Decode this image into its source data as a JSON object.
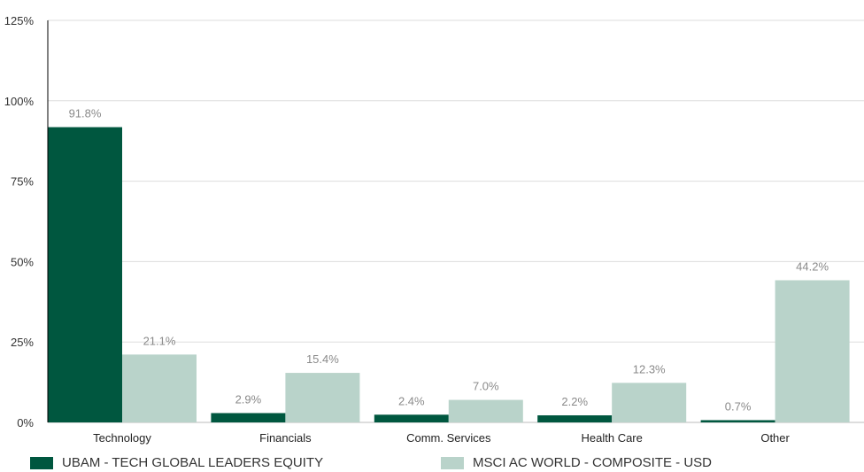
{
  "chart_data": {
    "type": "bar",
    "categories": [
      "Technology",
      "Financials",
      "Comm. Services",
      "Health Care",
      "Other"
    ],
    "series": [
      {
        "name": "UBAM - TECH GLOBAL LEADERS EQUITY",
        "values": [
          91.8,
          2.9,
          2.4,
          2.2,
          0.7
        ],
        "labels": [
          "91.8%",
          "2.9%",
          "2.4%",
          "2.2%",
          "0.7%"
        ],
        "color": "#00573f"
      },
      {
        "name": "MSCI AC WORLD - COMPOSITE - USD",
        "values": [
          21.1,
          15.4,
          7.0,
          12.3,
          44.2
        ],
        "labels": [
          "21.1%",
          "15.4%",
          "7.0%",
          "12.3%",
          "44.2%"
        ],
        "color": "#b9d3ca"
      }
    ],
    "yticks": [
      "0%",
      "25%",
      "50%",
      "75%",
      "100%",
      "125%"
    ],
    "ytick_values": [
      0,
      25,
      50,
      75,
      100,
      125
    ],
    "ylim": [
      0,
      125
    ],
    "grid": true,
    "legend_position": "bottom",
    "xlabel": "",
    "ylabel": ""
  }
}
